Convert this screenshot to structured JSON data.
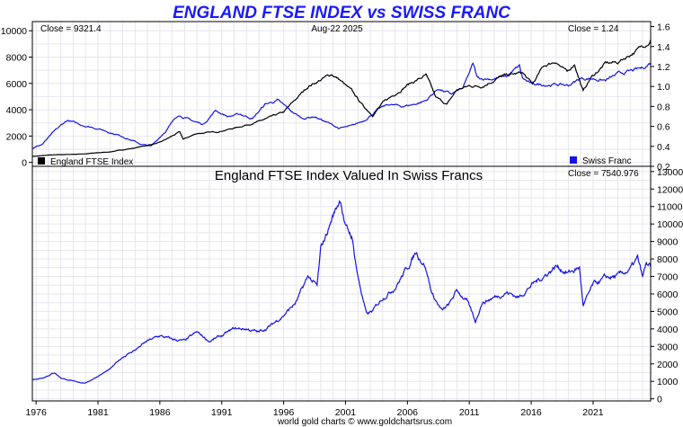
{
  "title": "ENGLAND FTSE INDEX vs SWISS FRANC",
  "top_panel": {
    "close_left": "Close = 9321.4",
    "date": "Aug-22  2025",
    "close_right": "Close = 1.24",
    "legend_left": "England FTSE Index",
    "legend_right": "Swiss Franc"
  },
  "bottom_panel": {
    "title": "England FTSE Index Valued In Swiss Francs",
    "close": "Close = 7540.976"
  },
  "footer": "world gold charts © www.goldchartsrus.com",
  "colors": {
    "ftse": "#000000",
    "franc": "#1414e6",
    "title": "#1a1aff"
  },
  "chart_data": [
    {
      "type": "line",
      "title": "ENGLAND FTSE INDEX vs SWISS FRANC",
      "x_range": [
        1975.7,
        2025.65
      ],
      "x_ticks": [
        "1976",
        "1981",
        "1986",
        "1991",
        "1996",
        "2001",
        "2006",
        "2011",
        "2016",
        "2021"
      ],
      "y_left_range": [
        -300,
        10700
      ],
      "y_left_ticks": [
        "0",
        "2000",
        "4000",
        "6000",
        "8000",
        "10000"
      ],
      "y_right_range": [
        0.2,
        1.65
      ],
      "y_right_ticks": [
        "0.2",
        "0.4",
        "0.6",
        "0.8",
        "1.0",
        "1.2",
        "1.4",
        "1.6"
      ],
      "grid": true,
      "series": [
        {
          "name": "England FTSE Index",
          "axis": "left",
          "x": [
            1975.7,
            1977,
            1978.5,
            1980,
            1982,
            1984,
            1986,
            1987.6,
            1987.9,
            1989,
            1990.5,
            1992,
            1994,
            1996,
            1998,
            1999.9,
            2000.5,
            2001.5,
            2002.5,
            2003.2,
            2004,
            2006,
            2007.5,
            2008.3,
            2009.2,
            2010,
            2011,
            2012,
            2013.5,
            2015.3,
            2016.1,
            2017,
            2018,
            2018.9,
            2019.5,
            2020.2,
            2020.8,
            2022,
            2023,
            2024,
            2025,
            2025.65
          ],
          "values": [
            450,
            550,
            600,
            650,
            800,
            1100,
            1500,
            2300,
            1750,
            2200,
            2300,
            2600,
            3100,
            3800,
            5800,
            6700,
            6300,
            5400,
            4200,
            3600,
            4500,
            5900,
            6600,
            4900,
            4400,
            5500,
            5800,
            5800,
            6500,
            6800,
            5900,
            7300,
            7700,
            6800,
            7500,
            5400,
            6400,
            7500,
            7600,
            8200,
            8800,
            9321
          ]
        },
        {
          "name": "Swiss Franc",
          "axis": "right",
          "x": [
            1975.7,
            1976.5,
            1977.5,
            1978.5,
            1979.5,
            1981,
            1983,
            1984.5,
            1985.3,
            1986.5,
            1987.5,
            1988.5,
            1989.5,
            1990.5,
            1991.5,
            1992.5,
            1993.5,
            1994.5,
            1995.5,
            1996.5,
            1997.5,
            1998.5,
            1999.5,
            2000.5,
            2001.5,
            2002.5,
            2003.5,
            2004.5,
            2005.5,
            2006.5,
            2007.5,
            2008.5,
            2009.5,
            2010.5,
            2011.3,
            2011.65,
            2012,
            2013,
            2014,
            2015.05,
            2015.3,
            2016,
            2017,
            2018,
            2019,
            2020,
            2021,
            2022,
            2023,
            2024,
            2025,
            2025.65
          ],
          "values": [
            0.38,
            0.42,
            0.55,
            0.66,
            0.62,
            0.58,
            0.5,
            0.42,
            0.4,
            0.56,
            0.72,
            0.66,
            0.62,
            0.76,
            0.7,
            0.72,
            0.68,
            0.82,
            0.86,
            0.76,
            0.68,
            0.7,
            0.64,
            0.58,
            0.6,
            0.66,
            0.76,
            0.82,
            0.8,
            0.82,
            0.86,
            0.98,
            0.92,
            0.98,
            1.22,
            1.08,
            1.08,
            1.08,
            1.1,
            1.2,
            1.08,
            1.02,
            1.02,
            1.02,
            1.01,
            1.08,
            1.08,
            1.06,
            1.12,
            1.15,
            1.18,
            1.24
          ]
        }
      ]
    },
    {
      "type": "line",
      "title": "England FTSE Index Valued In Swiss Francs",
      "x_range": [
        1975.7,
        2025.65
      ],
      "x_ticks": [
        "1976",
        "1981",
        "1986",
        "1991",
        "1996",
        "2001",
        "2006",
        "2011",
        "2016",
        "2021"
      ],
      "y_range": [
        -120,
        13300
      ],
      "y_ticks": [
        "0",
        "1000",
        "2000",
        "3000",
        "4000",
        "5000",
        "6000",
        "7000",
        "8000",
        "9000",
        "10000",
        "11000",
        "12000",
        "13000"
      ],
      "grid": true,
      "series": [
        {
          "name": "England FTSE Index Valued In Swiss Francs",
          "x": [
            1975.7,
            1976.5,
            1977.5,
            1978,
            1979,
            1980,
            1981,
            1982,
            1983,
            1984,
            1985,
            1986,
            1987,
            1988,
            1989,
            1990,
            1991,
            1992,
            1993,
            1994,
            1995,
            1996,
            1997,
            1998,
            1998.7,
            1999,
            1999.5,
            2000,
            2000.6,
            2001,
            2001.5,
            2002,
            2002.7,
            2003.2,
            2004,
            2005,
            2006,
            2006.7,
            2007.4,
            2008,
            2008.8,
            2009.4,
            2010,
            2010.8,
            2011.5,
            2012,
            2013,
            2014,
            2015,
            2016,
            2017,
            2018,
            2019,
            2019.9,
            2020.2,
            2021,
            2022,
            2023,
            2024,
            2024.6,
            2025,
            2025.3,
            2025.65
          ],
          "values": [
            1100,
            1200,
            1500,
            1200,
            1000,
            900,
            1300,
            1700,
            2400,
            2800,
            3300,
            3600,
            3400,
            3300,
            3800,
            3300,
            3600,
            4000,
            4000,
            3800,
            4200,
            4800,
            5500,
            7000,
            6400,
            8500,
            9500,
            10500,
            11500,
            9800,
            9300,
            7000,
            4800,
            5000,
            5800,
            6400,
            7500,
            8400,
            7700,
            6000,
            5000,
            5400,
            6200,
            5600,
            4400,
            5500,
            5800,
            6100,
            5800,
            6500,
            7000,
            7600,
            7200,
            7500,
            5300,
            6500,
            6900,
            7000,
            7400,
            8000,
            6900,
            7700,
            7541
          ]
        }
      ]
    }
  ]
}
